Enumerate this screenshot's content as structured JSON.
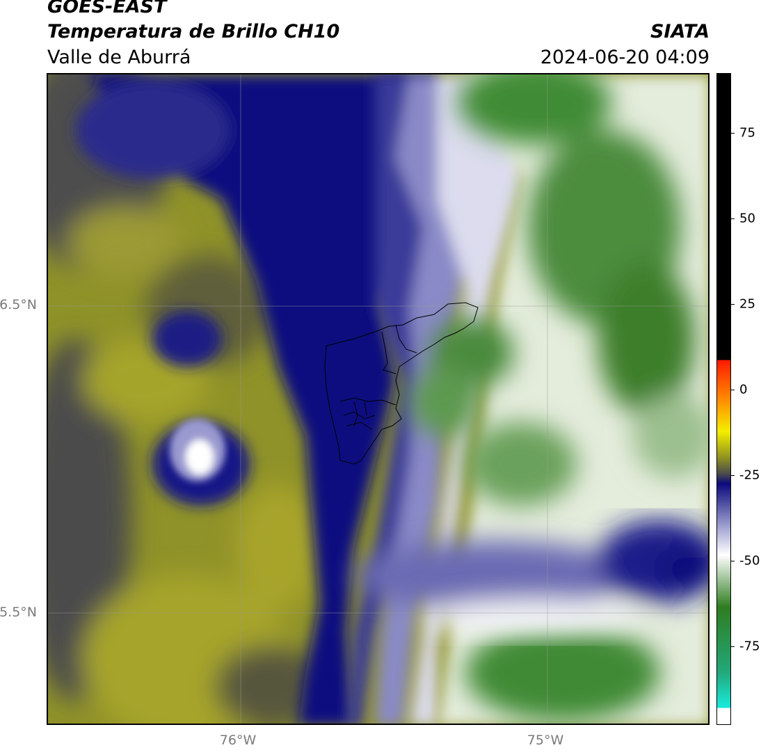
{
  "header": {
    "satellite": "GOES-EAST",
    "product": "Temperatura de Brillo CH10",
    "region": "Valle de Aburrá",
    "organization": "SIATA",
    "timestamp": "2024-06-20 04:09"
  },
  "map": {
    "lon_labels": [
      "76°W",
      "75°W"
    ],
    "lat_labels": [
      "6.5°N",
      "5.5°N"
    ],
    "gridlines": true
  },
  "colorbar": {
    "tick_labels": [
      "75",
      "50",
      "25",
      "0",
      "-25",
      "-50",
      "-75"
    ],
    "colors": {
      "black_top": "#000000",
      "red": "#ff1a00",
      "orange": "#ff8a00",
      "yellow": "#f4ee00",
      "olive": "#8f9220",
      "dark_gray": "#4b4b4b",
      "navy": "#0a0a7d",
      "lavender": "#a9a9d6",
      "white": "#ffffff",
      "green": "#2e7d1f",
      "teal": "#22a87a",
      "cyan": "#19e6d6"
    }
  }
}
